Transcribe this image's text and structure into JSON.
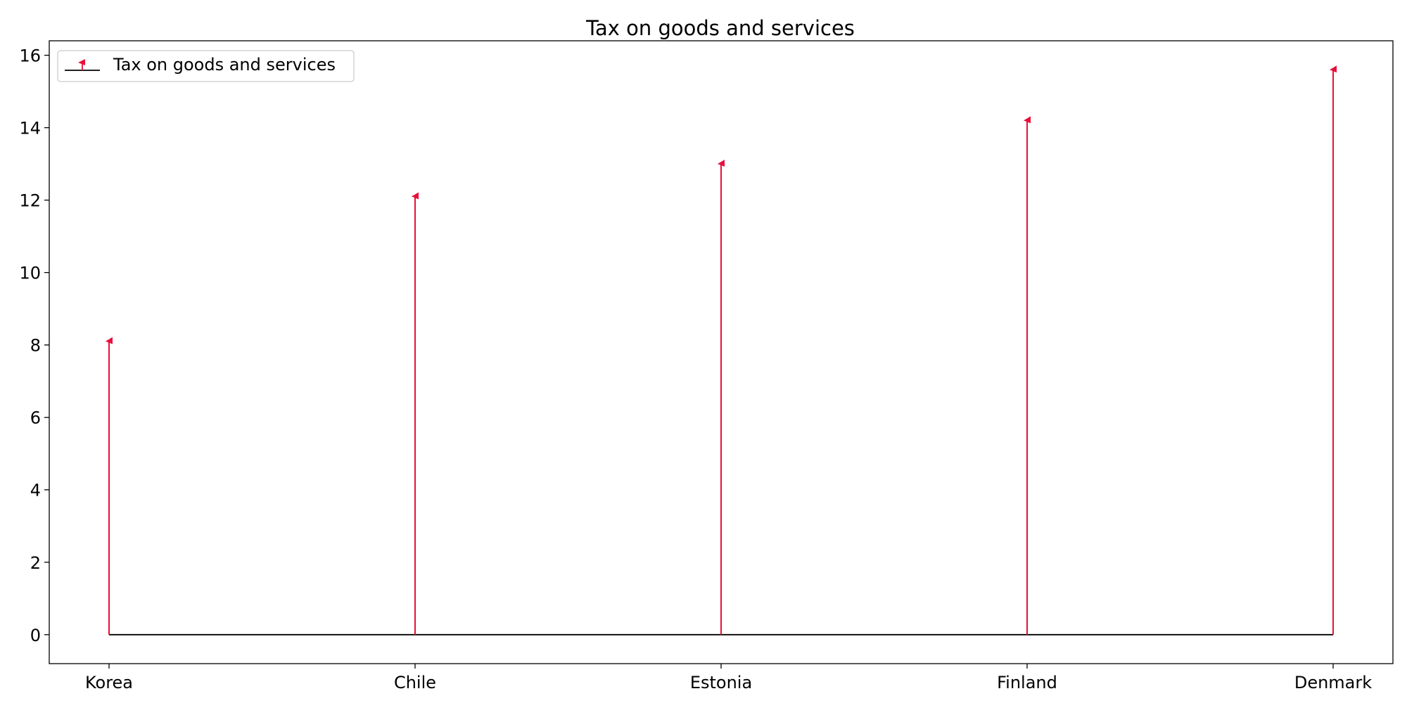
{
  "chart_data": {
    "type": "stem",
    "title": "Tax on goods and services",
    "xlabel": "",
    "ylabel": "",
    "categories": [
      "Korea",
      "Chile",
      "Estonia",
      "Finland",
      "Denmark"
    ],
    "series": [
      {
        "name": "Tax on goods and services",
        "values": [
          8.1,
          12.1,
          13.0,
          14.2,
          15.6
        ]
      }
    ],
    "ylim": [
      -0.8,
      16.4
    ],
    "yticks": [
      0,
      2,
      4,
      6,
      8,
      10,
      12,
      14,
      16
    ],
    "grid": false,
    "legend_position": "top-left",
    "colors": {
      "stem": "#e8103a",
      "baseline": "#000000",
      "axes": "#000000"
    }
  }
}
